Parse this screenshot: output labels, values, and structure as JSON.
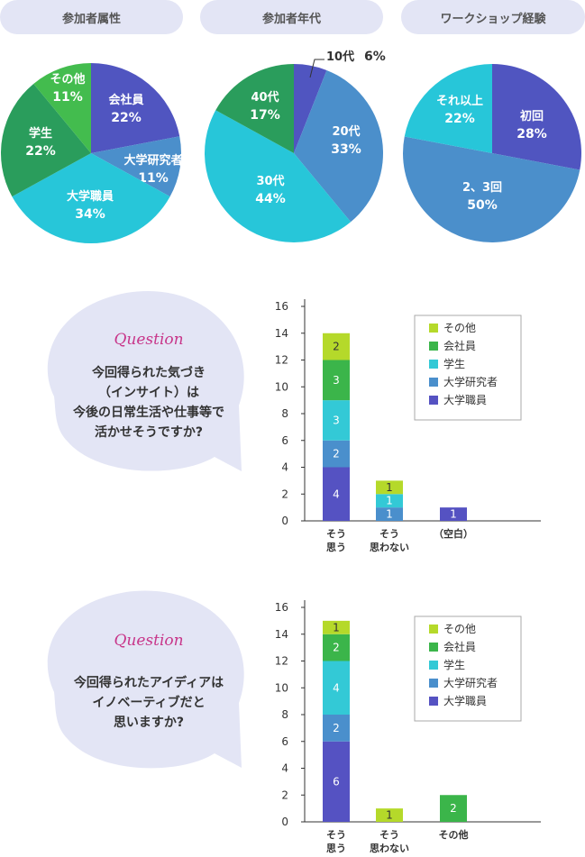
{
  "pie_headers": [
    "参加者属性",
    "参加者年代",
    "ワークショップ経験"
  ],
  "questions": [
    {
      "title": "Question",
      "lines": [
        "今回得られた気づき",
        "（インサイト）は",
        "今後の日常生活や仕事等で",
        "活かせそうですか?"
      ]
    },
    {
      "title": "Question",
      "lines": [
        "今回得られたアイディアは",
        "イノベーティブだと",
        "思いますか?"
      ]
    }
  ],
  "colors": {
    "pill_bg": "#e3e5f5",
    "bubble": "#e3e5f5",
    "question_title": "#c8368a",
    "company": "#5055c0",
    "researcher": "#4b8fcb",
    "student": "#27c6d9",
    "other_green": "#43bc4e",
    "other": "#8dc63f",
    "age40": "#2a9d5c",
    "age10": "#5055c0",
    "stack_other": "#b5d92a",
    "stack_company": "#3bb54a",
    "stack_student": "#33c9d6",
    "stack_researcher": "#4a8fcc",
    "stack_staff": "#5552c2"
  },
  "chart_data": [
    {
      "type": "pie",
      "title": "参加者属性",
      "slices": [
        {
          "label": "会社員",
          "value": 22,
          "pct": "22%",
          "color": "#5055c0"
        },
        {
          "label": "大学研究者",
          "value": 11,
          "pct": "11%",
          "color": "#4b8fcb"
        },
        {
          "label": "大学職員",
          "value": 34,
          "pct": "34%",
          "color": "#27c6d9"
        },
        {
          "label": "学生",
          "value": 22,
          "pct": "22%",
          "color": "#2a9d5c"
        },
        {
          "label": "その他",
          "value": 11,
          "pct": "11%",
          "color": "#43bc4e"
        }
      ]
    },
    {
      "type": "pie",
      "title": "参加者年代",
      "slices": [
        {
          "label": "10代",
          "value": 6,
          "pct": "6%",
          "color": "#5055c0"
        },
        {
          "label": "20代",
          "value": 33,
          "pct": "33%",
          "color": "#4b8fcb"
        },
        {
          "label": "30代",
          "value": 44,
          "pct": "44%",
          "color": "#27c6d9"
        },
        {
          "label": "40代",
          "value": 17,
          "pct": "17%",
          "color": "#2a9d5c"
        }
      ]
    },
    {
      "type": "pie",
      "title": "ワークショップ経験",
      "slices": [
        {
          "label": "初回",
          "value": 28,
          "pct": "28%",
          "color": "#5055c0"
        },
        {
          "label": "2、3回",
          "value": 50,
          "pct": "50%",
          "color": "#4b8fcb"
        },
        {
          "label": "それ以上",
          "value": 22,
          "pct": "22%",
          "color": "#27c6d9"
        }
      ]
    },
    {
      "type": "bar",
      "stacked": true,
      "categories": [
        "そう\n思う",
        "そう\n思わない",
        "（空白）"
      ],
      "ylim": [
        0,
        16
      ],
      "yticks": [
        0,
        2,
        4,
        6,
        8,
        10,
        12,
        14,
        16
      ],
      "legend": "top-right",
      "series": [
        {
          "name": "大学職員",
          "color": "#5552c2",
          "values": [
            4,
            0,
            1
          ]
        },
        {
          "name": "大学研究者",
          "color": "#4a8fcc",
          "values": [
            2,
            1,
            0
          ]
        },
        {
          "name": "学生",
          "color": "#33c9d6",
          "values": [
            3,
            1,
            0
          ]
        },
        {
          "name": "会社員",
          "color": "#3bb54a",
          "values": [
            3,
            0,
            0
          ]
        },
        {
          "name": "その他",
          "color": "#b5d92a",
          "values": [
            2,
            1,
            0
          ]
        }
      ]
    },
    {
      "type": "bar",
      "stacked": true,
      "categories": [
        "そう\n思う",
        "そう\n思わない",
        "その他"
      ],
      "ylim": [
        0,
        16
      ],
      "yticks": [
        0,
        2,
        4,
        6,
        8,
        10,
        12,
        14,
        16
      ],
      "legend": "top-right",
      "series": [
        {
          "name": "大学職員",
          "color": "#5552c2",
          "values": [
            6,
            0,
            0
          ]
        },
        {
          "name": "大学研究者",
          "color": "#4a8fcc",
          "values": [
            2,
            0,
            0
          ]
        },
        {
          "name": "学生",
          "color": "#33c9d6",
          "values": [
            4,
            0,
            0
          ]
        },
        {
          "name": "会社員",
          "color": "#3bb54a",
          "values": [
            2,
            0,
            2
          ]
        },
        {
          "name": "その他",
          "color": "#b5d92a",
          "values": [
            1,
            1,
            0
          ]
        }
      ]
    }
  ]
}
